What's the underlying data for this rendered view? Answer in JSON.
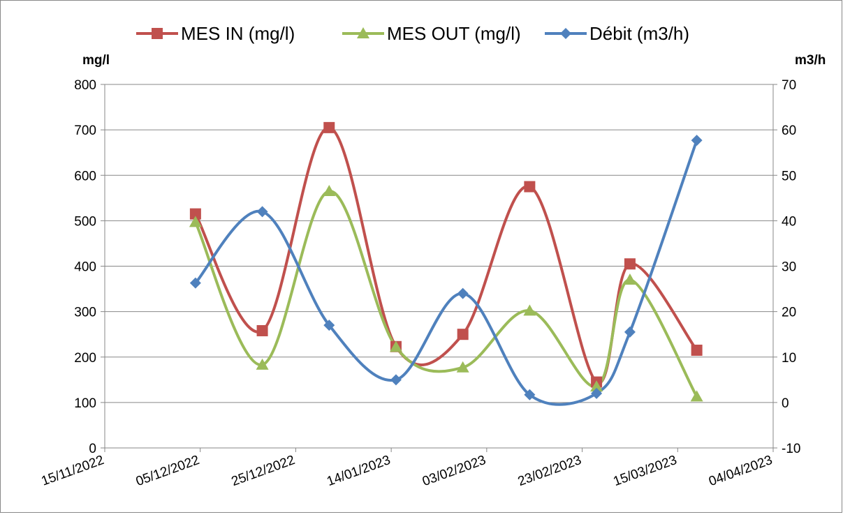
{
  "chart_data": {
    "type": "line",
    "x": [
      "04/12/2022",
      "18/12/2022",
      "01/01/2023",
      "15/01/2023",
      "29/01/2023",
      "12/02/2023",
      "26/02/2023",
      "05/03/2023",
      "19/03/2023"
    ],
    "series": [
      {
        "name": "MES IN (mg/l)",
        "color": "#c0504d",
        "marker": "square",
        "values": [
          515,
          258,
          705,
          223,
          250,
          575,
          145,
          405,
          215
        ]
      },
      {
        "name": "MES OUT (mg/l)",
        "color": "#9bbb59",
        "marker": "triangle",
        "values": [
          497,
          183,
          565,
          222,
          177,
          302,
          135,
          370,
          113
        ]
      },
      {
        "name": "Débit (m3/h)",
        "color": "#4f81bd",
        "marker": "diamond",
        "axis": "y2",
        "values": [
          26.3,
          42,
          17,
          5,
          24,
          1.7,
          2,
          15.5,
          57.7
        ]
      }
    ],
    "ylabel": "mg/l",
    "y2label": "m3/h",
    "xlim": [
      "15/11/2022",
      "04/04/2023"
    ],
    "xticks": [
      "15/11/2022",
      "05/12/2022",
      "25/12/2022",
      "14/01/2023",
      "03/02/2023",
      "23/02/2023",
      "15/03/2023",
      "04/04/2023"
    ],
    "ylim": [
      0,
      800
    ],
    "yticks": [
      0,
      100,
      200,
      300,
      400,
      500,
      600,
      700,
      800
    ],
    "y2lim": [
      -10,
      70
    ],
    "y2ticks": [
      -10,
      0,
      10,
      20,
      30,
      40,
      50,
      60,
      70
    ],
    "grid": true,
    "legend": "top",
    "smooth": true
  }
}
